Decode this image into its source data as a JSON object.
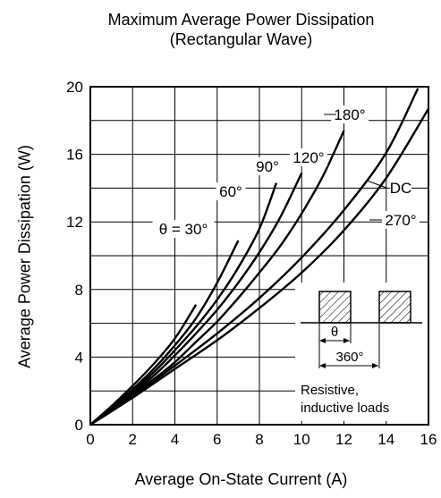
{
  "chart_data": {
    "type": "line",
    "title": "Maximum Average Power Dissipation",
    "subtitle": "(Rectangular Wave)",
    "xlabel": "Average On-State Current  (A)",
    "ylabel": "Average Power Dissipation  (W)",
    "xlim": [
      0,
      16
    ],
    "ylim": [
      0,
      20
    ],
    "xticks": [
      "0",
      "2",
      "4",
      "6",
      "8",
      "10",
      "12",
      "14",
      "16"
    ],
    "yticks": [
      "0",
      "4",
      "8",
      "12",
      "16",
      "20"
    ],
    "grid": true,
    "series": [
      {
        "name": "θ = 30°",
        "x": [
          0,
          1,
          2,
          3,
          4,
          5
        ],
        "y": [
          0,
          1.1,
          2.3,
          3.6,
          5.1,
          7.1
        ]
      },
      {
        "name": "60°",
        "x": [
          0,
          1,
          2,
          3,
          4,
          5,
          6,
          7
        ],
        "y": [
          0,
          1.0,
          2.1,
          3.3,
          4.7,
          6.3,
          8.4,
          10.9
        ]
      },
      {
        "name": "90°",
        "x": [
          0,
          1,
          2,
          3,
          4,
          5,
          6,
          7,
          8,
          8.8
        ],
        "y": [
          0,
          0.9,
          2.0,
          3.1,
          4.4,
          5.8,
          7.4,
          9.3,
          11.6,
          14.3
        ]
      },
      {
        "name": "120°",
        "x": [
          0,
          1,
          2,
          3,
          4,
          5,
          6,
          7,
          8,
          9,
          10
        ],
        "y": [
          0,
          0.9,
          1.9,
          2.9,
          4.1,
          5.4,
          6.8,
          8.4,
          10.2,
          12.3,
          14.9
        ]
      },
      {
        "name": "180°",
        "x": [
          0,
          1,
          2,
          3,
          4,
          5,
          6,
          7,
          8,
          9,
          10,
          11,
          12
        ],
        "y": [
          0,
          0.85,
          1.8,
          2.7,
          3.7,
          4.9,
          6.1,
          7.5,
          9.0,
          10.6,
          12.5,
          14.7,
          17.4
        ]
      },
      {
        "name": "270°",
        "x": [
          0,
          2,
          4,
          6,
          8,
          10,
          12,
          14,
          15.5
        ],
        "y": [
          0,
          1.7,
          3.5,
          5.4,
          7.5,
          9.9,
          12.7,
          16.1,
          19.9
        ]
      },
      {
        "name": "DC",
        "x": [
          0,
          2,
          4,
          6,
          8,
          10,
          12,
          14,
          16
        ],
        "y": [
          0,
          1.6,
          3.3,
          5.0,
          6.9,
          9.0,
          11.5,
          14.6,
          18.7
        ]
      }
    ],
    "inset": {
      "theta_label": "θ",
      "period_label": "360°",
      "note_line1": "Resistive,",
      "note_line2": "inductive loads"
    }
  }
}
